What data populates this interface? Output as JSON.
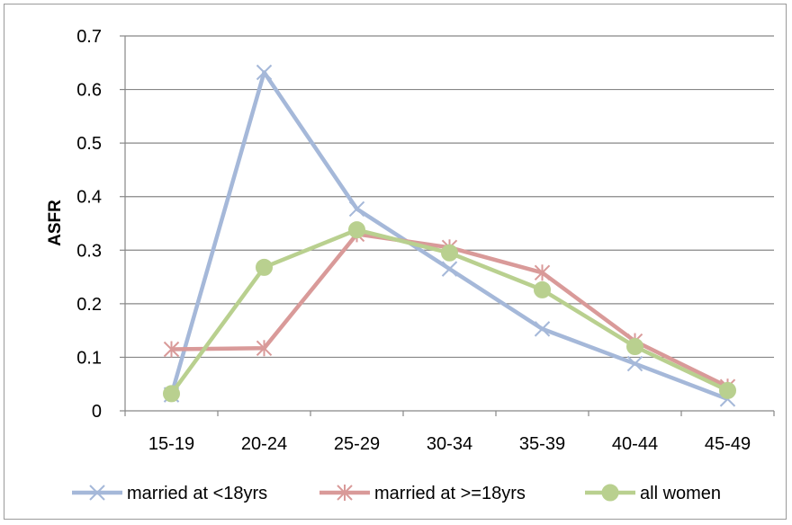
{
  "chart_data": {
    "type": "line",
    "title": "",
    "xlabel": "",
    "ylabel": "ASFR",
    "ylim": [
      0,
      0.7
    ],
    "yticks": [
      "0",
      "0.1",
      "0.2",
      "0.3",
      "0.4",
      "0.5",
      "0.6",
      "0.7"
    ],
    "grid": true,
    "legend_position": "bottom",
    "categories": [
      "15-19",
      "20-24",
      "25-29",
      "30-34",
      "35-39",
      "40-44",
      "45-49"
    ],
    "series": [
      {
        "name": "married at <18yrs",
        "values": [
          0.03,
          0.632,
          0.377,
          0.265,
          0.153,
          0.088,
          0.022
        ],
        "color": "#a5b8d9",
        "marker": "x"
      },
      {
        "name": "married at >=18yrs",
        "values": [
          0.115,
          0.117,
          0.33,
          0.305,
          0.258,
          0.13,
          0.045
        ],
        "color": "#d99a99",
        "marker": "star"
      },
      {
        "name": "all women",
        "values": [
          0.032,
          0.268,
          0.338,
          0.295,
          0.226,
          0.12,
          0.038
        ],
        "color": "#b9d08f",
        "marker": "circle"
      }
    ]
  }
}
